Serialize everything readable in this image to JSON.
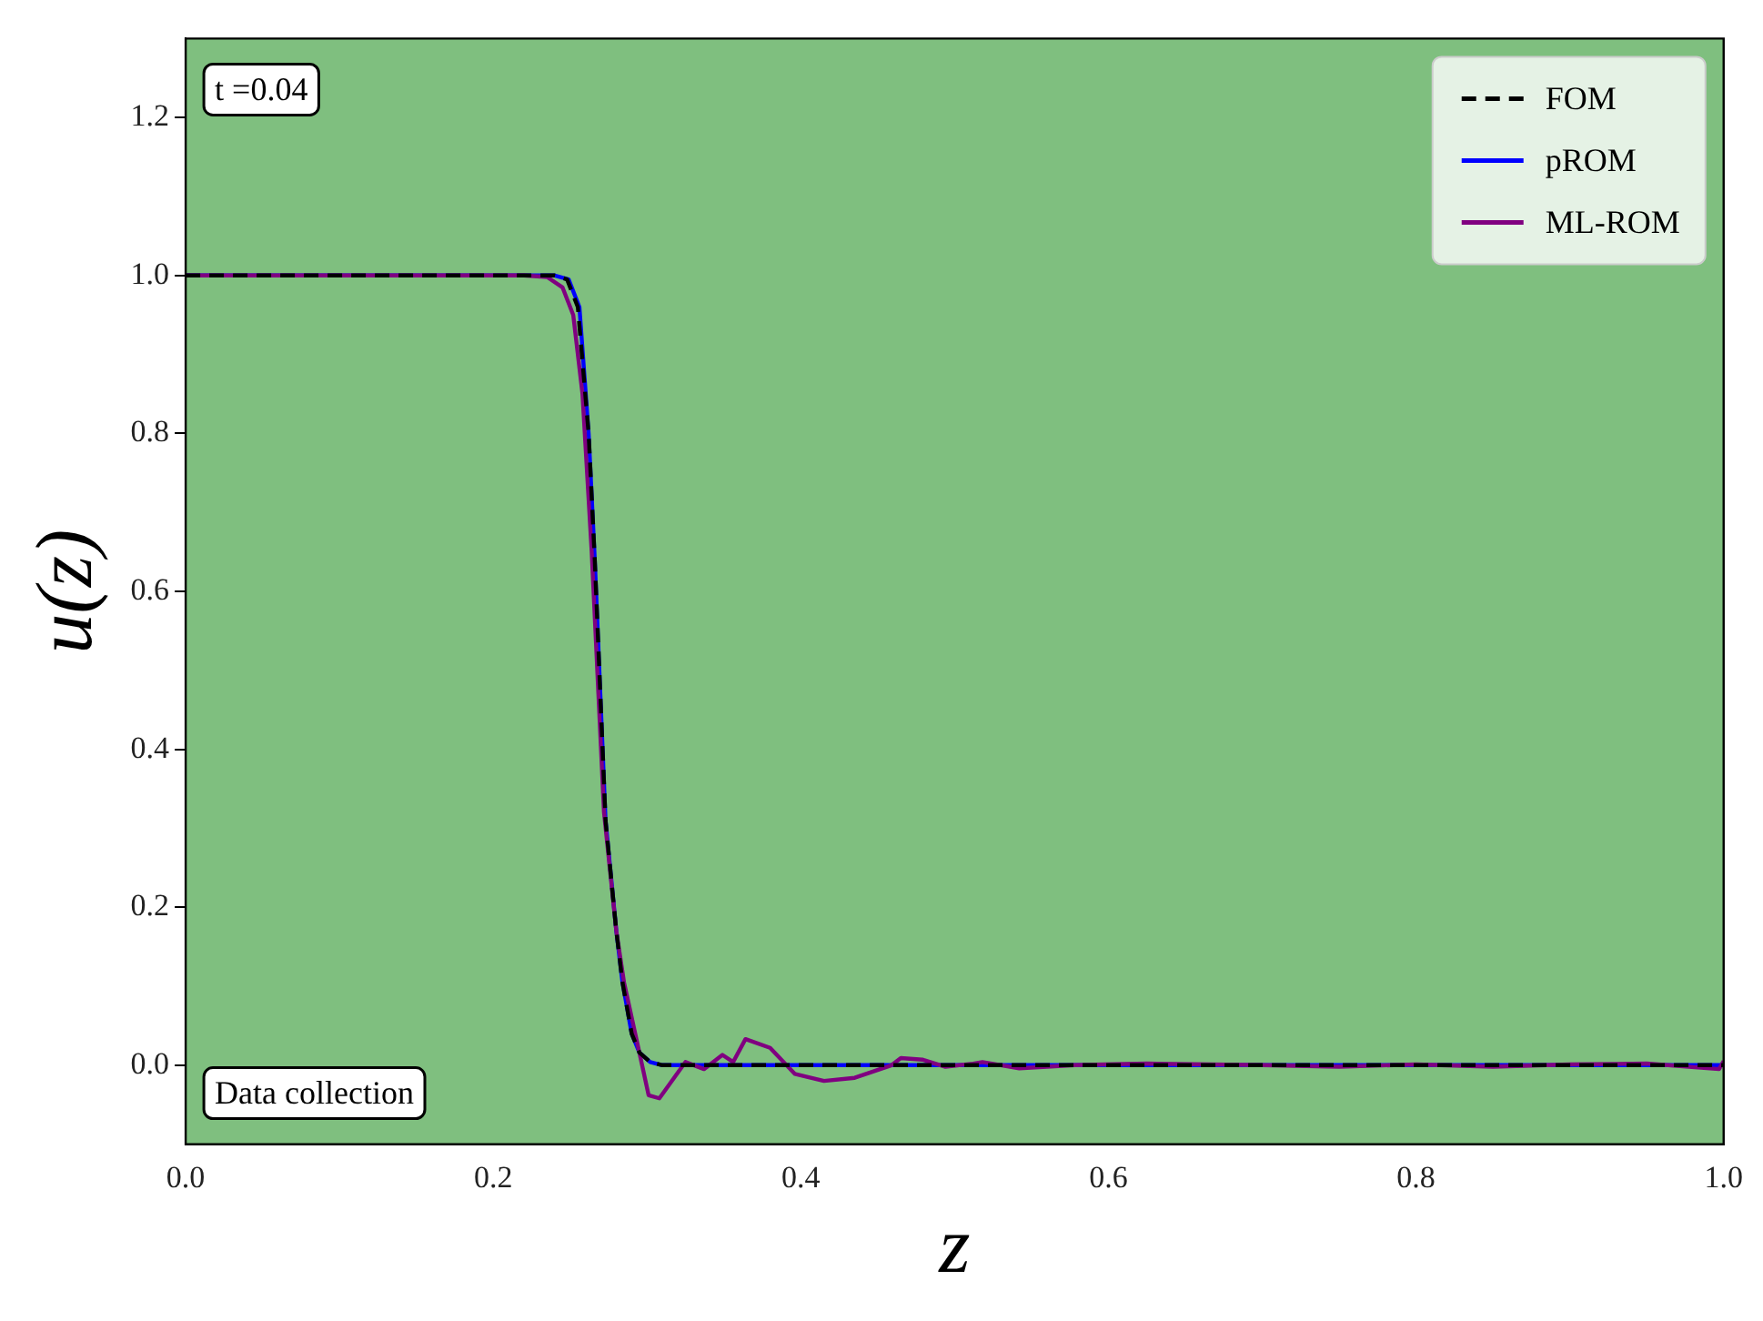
{
  "chart_data": {
    "type": "line",
    "xlabel": "z",
    "ylabel": "u(z)",
    "annotations": [
      "t =0.04",
      "Data collection"
    ],
    "xlim": [
      0,
      1
    ],
    "xticks": [
      {
        "value": 0,
        "label": "0.0"
      },
      0.2,
      0.4,
      0.6,
      0.8,
      {
        "value": 1,
        "label": "1.0"
      }
    ],
    "ylim": [
      -0.1,
      1.3
    ],
    "yticks": [
      {
        "value": 0,
        "label": "0.0"
      },
      0.2,
      0.4,
      0.6,
      0.8,
      {
        "value": 1,
        "label": "1.0"
      },
      1.2
    ],
    "grid": false,
    "legend": "top right",
    "marker": "none",
    "series": [
      {
        "name": "FOM",
        "color": "#000000",
        "line_style": "dashed",
        "x": [
          0,
          0.24,
          0.248,
          0.255,
          0.262,
          0.266,
          0.273,
          0.28,
          0.284,
          0.29,
          0.295,
          0.302,
          0.31,
          0.4,
          0.6,
          0.8,
          1.0
        ],
        "values": [
          1,
          1,
          0.995,
          0.96,
          0.8,
          0.64,
          0.31,
          0.17,
          0.105,
          0.04,
          0.016,
          0.004,
          0,
          0,
          0,
          0,
          0
        ]
      },
      {
        "name": "pROM",
        "color": "#0000ff",
        "line_style": "solid",
        "x": [
          0,
          0.24,
          0.249,
          0.256,
          0.262,
          0.266,
          0.273,
          0.28,
          0.284,
          0.29,
          0.295,
          0.302,
          0.31,
          0.4,
          0.6,
          0.8,
          1.0
        ],
        "values": [
          1,
          1,
          0.995,
          0.96,
          0.8,
          0.64,
          0.31,
          0.17,
          0.105,
          0.04,
          0.016,
          0.004,
          0,
          0,
          0,
          0,
          0
        ]
      },
      {
        "name": "ML-ROM",
        "color": "#800080",
        "line_style": "solid",
        "x": [
          0,
          0.22,
          0.235,
          0.245,
          0.252,
          0.258,
          0.264,
          0.272,
          0.28,
          0.285,
          0.295,
          0.301,
          0.308,
          0.325,
          0.337,
          0.349,
          0.356,
          0.364,
          0.38,
          0.396,
          0.415,
          0.435,
          0.459,
          0.465,
          0.479,
          0.494,
          0.512,
          0.518,
          0.542,
          0.578,
          0.625,
          0.7,
          0.75,
          0.8,
          0.85,
          0.9,
          0.95,
          0.997,
          1.0
        ],
        "values": [
          1,
          1,
          0.998,
          0.985,
          0.95,
          0.85,
          0.65,
          0.32,
          0.17,
          0.105,
          0.016,
          -0.038,
          -0.042,
          0.004,
          -0.005,
          0.013,
          0.004,
          0.033,
          0.022,
          -0.011,
          -0.02,
          -0.016,
          0,
          0.009,
          0.007,
          -0.002,
          0.002,
          0.004,
          -0.004,
          0,
          0.002,
          0,
          -0.002,
          0.001,
          -0.002,
          0.001,
          0.002,
          -0.005,
          0.005
        ]
      }
    ]
  }
}
